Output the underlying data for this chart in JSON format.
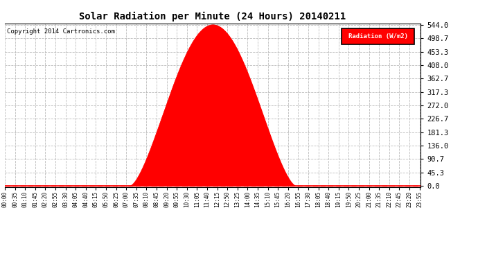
{
  "title": "Solar Radiation per Minute (24 Hours) 20140211",
  "copyright": "Copyright 2014 Cartronics.com",
  "legend_label": "Radiation (W/m2)",
  "fill_color": "#FF0000",
  "line_color": "#FF0000",
  "background_color": "#FFFFFF",
  "grid_color": "#AAAAAA",
  "ytick_labels": [
    "0.0",
    "45.3",
    "90.7",
    "136.0",
    "181.3",
    "226.7",
    "272.0",
    "317.3",
    "362.7",
    "408.0",
    "453.3",
    "498.7",
    "544.0"
  ],
  "ytick_values": [
    0.0,
    45.3,
    90.7,
    136.0,
    181.3,
    226.7,
    272.0,
    317.3,
    362.7,
    408.0,
    453.3,
    498.7,
    544.0
  ],
  "ymax": 544.0,
  "sunrise_minute": 435,
  "sunset_minute": 1005,
  "peak_minute": 735,
  "peak_value": 544.0,
  "total_minutes": 1440,
  "xtick_step": 35
}
